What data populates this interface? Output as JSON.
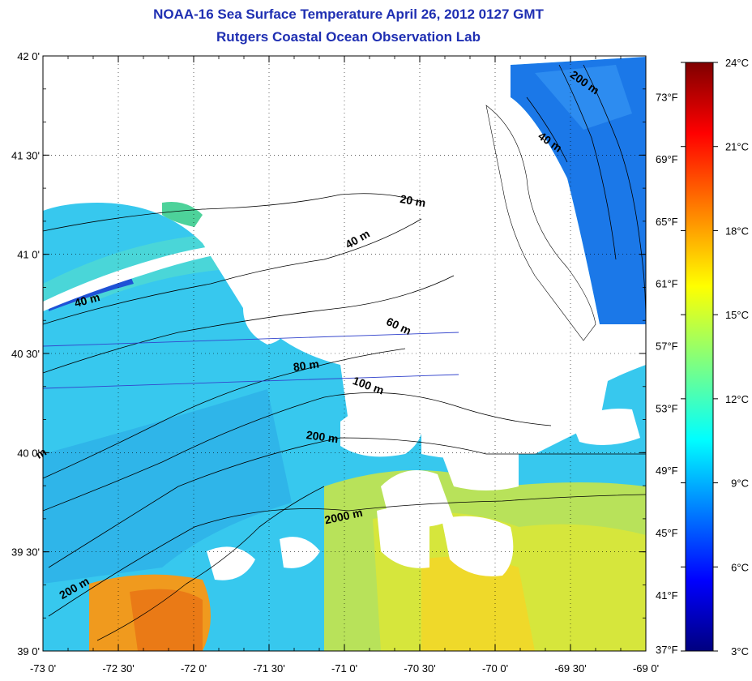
{
  "header": {
    "title_line1": "NOAA-16 Sea Surface Temperature April 26, 2012 0127 GMT",
    "title_line2": "Rutgers Coastal Ocean Observation Lab"
  },
  "map": {
    "x_ticks": [
      {
        "label": "-73 0'",
        "lon": -73.0
      },
      {
        "label": "-72 30'",
        "lon": -72.5
      },
      {
        "label": "-72 0'",
        "lon": -72.0
      },
      {
        "label": "-71 30'",
        "lon": -71.5
      },
      {
        "label": "-71 0'",
        "lon": -71.0
      },
      {
        "label": "-70 30'",
        "lon": -70.5
      },
      {
        "label": "-70 0'",
        "lon": -70.0
      },
      {
        "label": "-69 30'",
        "lon": -69.5
      },
      {
        "label": "-69 0'",
        "lon": -69.0
      }
    ],
    "y_ticks": [
      {
        "label": "42 0'",
        "lat": 42.0
      },
      {
        "label": "41 30'",
        "lat": 41.5
      },
      {
        "label": "41 0'",
        "lat": 41.0
      },
      {
        "label": "40 30'",
        "lat": 40.5
      },
      {
        "label": "40 0'",
        "lat": 40.0
      },
      {
        "label": "39 30'",
        "lat": 39.5
      },
      {
        "label": "39 0'",
        "lat": 39.0
      }
    ],
    "fahrenheit_ticks": [
      {
        "label": "73°F",
        "f": 73
      },
      {
        "label": "69°F",
        "f": 69
      },
      {
        "label": "65°F",
        "f": 65
      },
      {
        "label": "61°F",
        "f": 61
      },
      {
        "label": "57°F",
        "f": 57
      },
      {
        "label": "53°F",
        "f": 53
      },
      {
        "label": "49°F",
        "f": 49
      },
      {
        "label": "45°F",
        "f": 45
      },
      {
        "label": "41°F",
        "f": 41
      },
      {
        "label": "37°F",
        "f": 37
      }
    ],
    "contour_labels": [
      {
        "text": "20 m",
        "lon": -70.55,
        "lat": 41.25,
        "angle": 10
      },
      {
        "text": "40 m",
        "lon": -70.9,
        "lat": 41.06,
        "angle": -30
      },
      {
        "text": "40 m",
        "lon": -72.7,
        "lat": 40.75,
        "angle": -15
      },
      {
        "text": "40 m",
        "lon": -69.65,
        "lat": 41.55,
        "angle": 35
      },
      {
        "text": "200 m",
        "lon": -69.42,
        "lat": 41.85,
        "angle": 35
      },
      {
        "text": "60 m",
        "lon": -70.65,
        "lat": 40.62,
        "angle": 25
      },
      {
        "text": "80 m",
        "lon": -71.25,
        "lat": 40.42,
        "angle": -8
      },
      {
        "text": "100 m",
        "lon": -70.85,
        "lat": 40.32,
        "angle": 20
      },
      {
        "text": "200 m",
        "lon": -71.15,
        "lat": 40.06,
        "angle": 8
      },
      {
        "text": "2000 m",
        "lon": -71.0,
        "lat": 39.66,
        "angle": -12
      },
      {
        "text": "200 m",
        "lon": -72.78,
        "lat": 39.3,
        "angle": -30
      },
      {
        "text": "m",
        "lon": -73.0,
        "lat": 39.98,
        "angle": -30
      }
    ],
    "colors": {
      "land": "#ffffff",
      "ocean_mid": "#2fcdf0",
      "warm": "#f28a1a",
      "yellow": "#d8e43a",
      "title": "#1f2fb2"
    }
  },
  "colorbar": {
    "min_c": 3,
    "max_c": 24,
    "labels": [
      "24°C",
      "21°C",
      "18°C",
      "15°C",
      "12°C",
      "9°C",
      "6°C",
      "3°C"
    ],
    "values_c": [
      24,
      21,
      18,
      15,
      12,
      9,
      6,
      3
    ],
    "colormap": "jet"
  }
}
